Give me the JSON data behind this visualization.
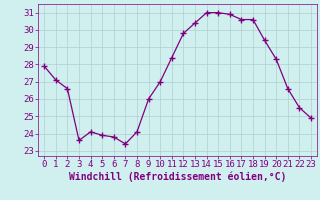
{
  "x": [
    0,
    1,
    2,
    3,
    4,
    5,
    6,
    7,
    8,
    9,
    10,
    11,
    12,
    13,
    14,
    15,
    16,
    17,
    18,
    19,
    20,
    21,
    22,
    23
  ],
  "y": [
    27.9,
    27.1,
    26.6,
    23.6,
    24.1,
    23.9,
    23.8,
    23.4,
    24.1,
    26.0,
    27.0,
    28.4,
    29.8,
    30.4,
    31.0,
    31.0,
    30.9,
    30.6,
    30.6,
    29.4,
    28.3,
    26.6,
    25.5,
    24.9
  ],
  "line_color": "#800080",
  "marker": "+",
  "marker_size": 4,
  "bg_color": "#d0f0f0",
  "grid_color": "#b0d0d0",
  "xlabel": "Windchill (Refroidissement éolien,°C)",
  "xlabel_fontsize": 7,
  "tick_fontsize": 6.5,
  "ylim": [
    22.7,
    31.5
  ],
  "xlim": [
    -0.5,
    23.5
  ],
  "yticks": [
    23,
    24,
    25,
    26,
    27,
    28,
    29,
    30,
    31
  ],
  "xticks": [
    0,
    1,
    2,
    3,
    4,
    5,
    6,
    7,
    8,
    9,
    10,
    11,
    12,
    13,
    14,
    15,
    16,
    17,
    18,
    19,
    20,
    21,
    22,
    23
  ]
}
